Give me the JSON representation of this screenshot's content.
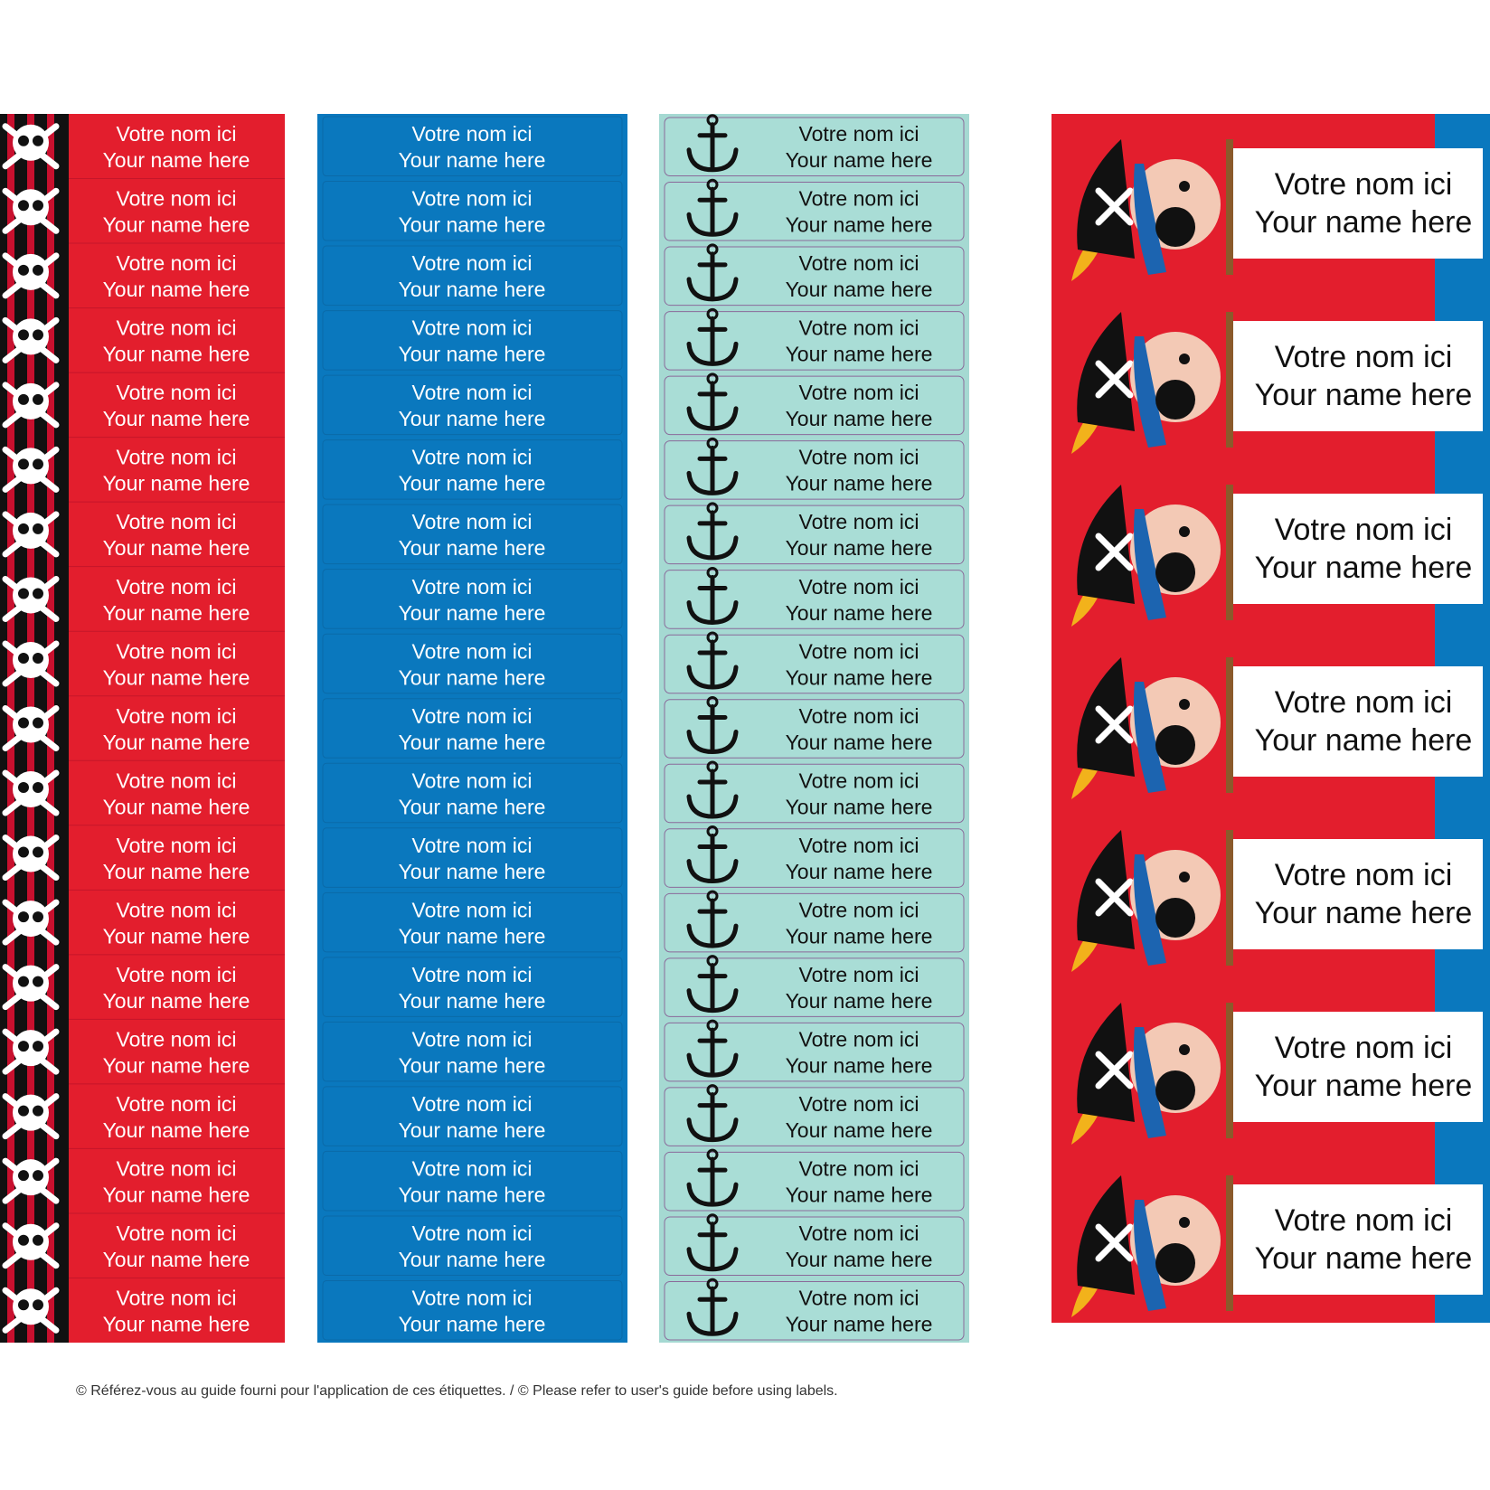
{
  "columns": [
    {
      "labels": [
        [
          "Votre nom ici",
          "Your name here"
        ],
        [
          "Votre nom ici",
          "Your name here"
        ],
        [
          "Votre nom ici",
          "Your name here"
        ],
        [
          "Votre nom ici",
          "Your name here"
        ],
        [
          "Votre nom ici",
          "Your name here"
        ],
        [
          "Votre nom ici",
          "Your name here"
        ],
        [
          "Votre nom ici",
          "Your name here"
        ],
        [
          "Votre nom ici",
          "Your name here"
        ],
        [
          "Votre nom ici",
          "Your name here"
        ],
        [
          "Votre nom ici",
          "Your name here"
        ],
        [
          "Votre nom ici",
          "Your name here"
        ],
        [
          "Votre nom ici",
          "Your name here"
        ],
        [
          "Votre nom ici",
          "Your name here"
        ],
        [
          "Votre nom ici",
          "Your name here"
        ],
        [
          "Votre nom ici",
          "Your name here"
        ],
        [
          "Votre nom ici",
          "Your name here"
        ],
        [
          "Votre nom ici",
          "Your name here"
        ],
        [
          "Votre nom ici",
          "Your name here"
        ],
        [
          "Votre nom ici",
          "Your name here"
        ]
      ]
    },
    {
      "labels": [
        [
          "Votre nom ici",
          "Your name here"
        ],
        [
          "Votre nom ici",
          "Your name here"
        ],
        [
          "Votre nom ici",
          "Your name here"
        ],
        [
          "Votre nom ici",
          "Your name here"
        ],
        [
          "Votre nom ici",
          "Your name here"
        ],
        [
          "Votre nom ici",
          "Your name here"
        ],
        [
          "Votre nom ici",
          "Your name here"
        ],
        [
          "Votre nom ici",
          "Your name here"
        ],
        [
          "Votre nom ici",
          "Your name here"
        ],
        [
          "Votre nom ici",
          "Your name here"
        ],
        [
          "Votre nom ici",
          "Your name here"
        ],
        [
          "Votre nom ici",
          "Your name here"
        ],
        [
          "Votre nom ici",
          "Your name here"
        ],
        [
          "Votre nom ici",
          "Your name here"
        ],
        [
          "Votre nom ici",
          "Your name here"
        ],
        [
          "Votre nom ici",
          "Your name here"
        ],
        [
          "Votre nom ici",
          "Your name here"
        ],
        [
          "Votre nom ici",
          "Your name here"
        ],
        [
          "Votre nom ici",
          "Your name here"
        ]
      ]
    },
    {
      "labels": [
        [
          "Votre nom ici",
          "Your name here"
        ],
        [
          "Votre nom ici",
          "Your name here"
        ],
        [
          "Votre nom ici",
          "Your name here"
        ],
        [
          "Votre nom ici",
          "Your name here"
        ],
        [
          "Votre nom ici",
          "Your name here"
        ],
        [
          "Votre nom ici",
          "Your name here"
        ],
        [
          "Votre nom ici",
          "Your name here"
        ],
        [
          "Votre nom ici",
          "Your name here"
        ],
        [
          "Votre nom ici",
          "Your name here"
        ],
        [
          "Votre nom ici",
          "Your name here"
        ],
        [
          "Votre nom ici",
          "Your name here"
        ],
        [
          "Votre nom ici",
          "Your name here"
        ],
        [
          "Votre nom ici",
          "Your name here"
        ],
        [
          "Votre nom ici",
          "Your name here"
        ],
        [
          "Votre nom ici",
          "Your name here"
        ],
        [
          "Votre nom ici",
          "Your name here"
        ],
        [
          "Votre nom ici",
          "Your name here"
        ],
        [
          "Votre nom ici",
          "Your name here"
        ],
        [
          "Votre nom ici",
          "Your name here"
        ]
      ]
    },
    {
      "labels": [
        [
          "Votre nom ici",
          "Your name here"
        ],
        [
          "Votre nom ici",
          "Your name here"
        ],
        [
          "Votre nom ici",
          "Your name here"
        ],
        [
          "Votre nom ici",
          "Your name here"
        ],
        [
          "Votre nom ici",
          "Your name here"
        ],
        [
          "Votre nom ici",
          "Your name here"
        ],
        [
          "Votre nom ici",
          "Your name here"
        ]
      ]
    }
  ],
  "footer": "© Référez-vous au guide fourni pour l'application de ces étiquettes. / © Please refer to user's guide before using labels."
}
